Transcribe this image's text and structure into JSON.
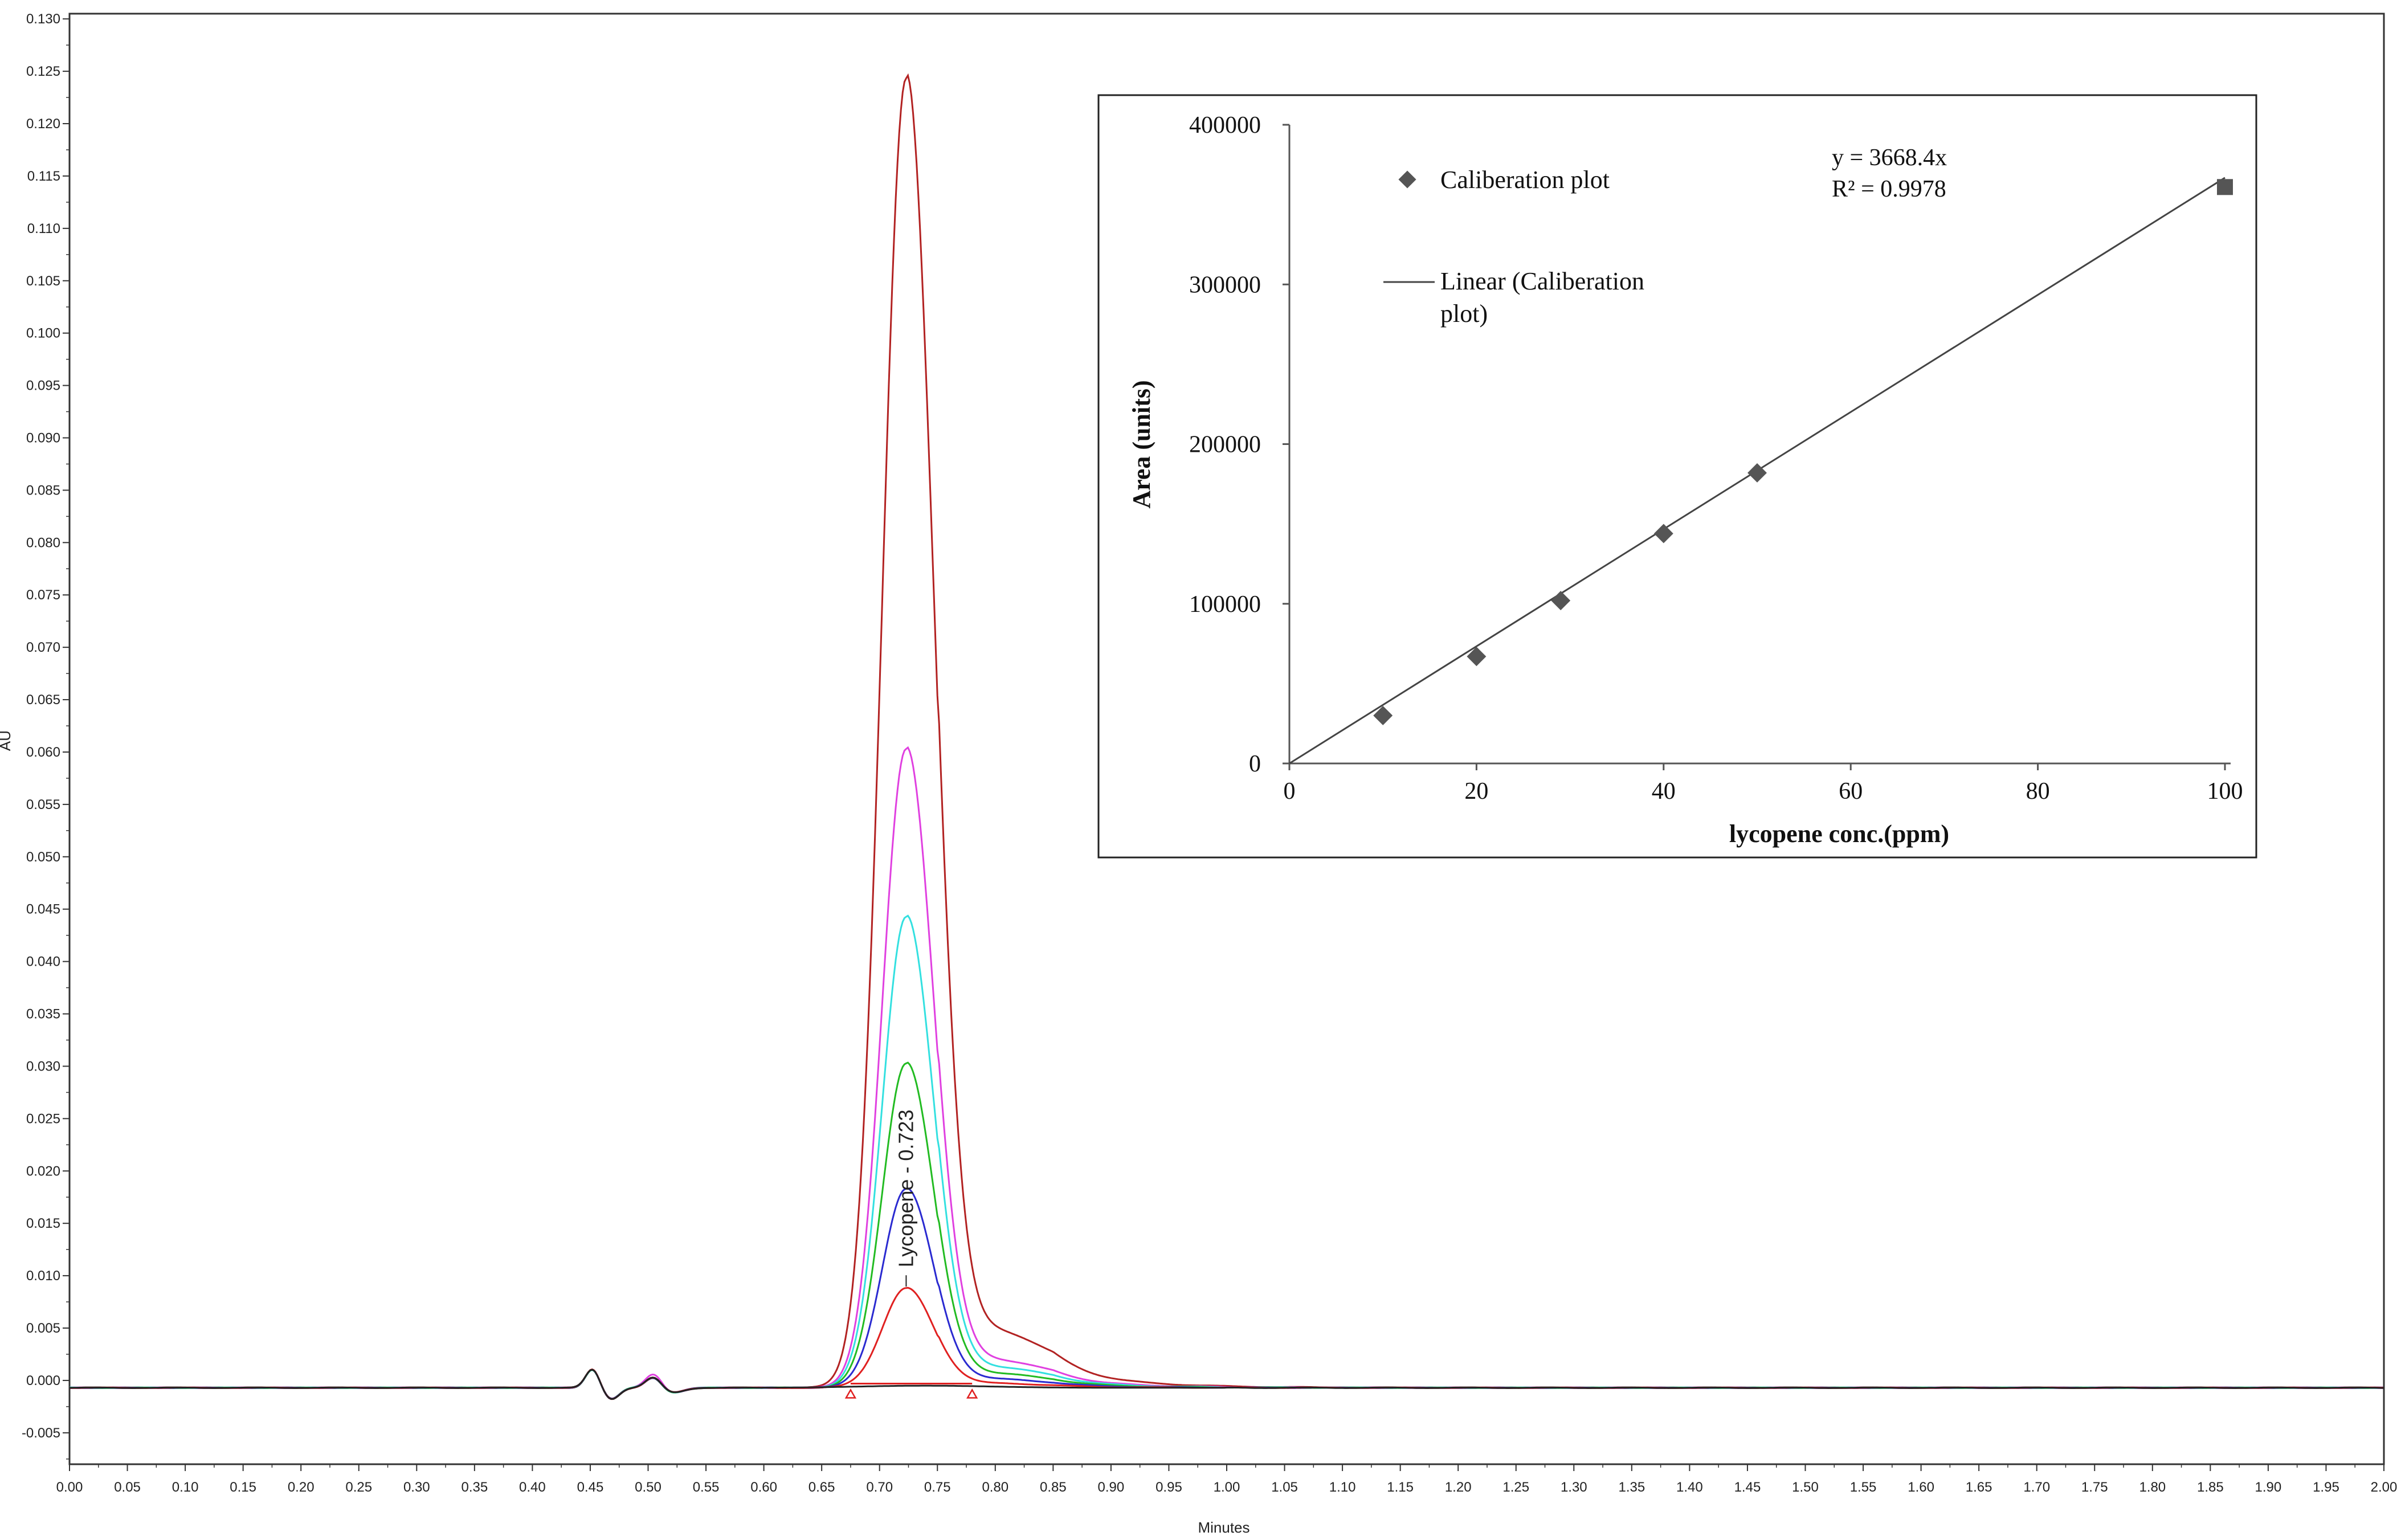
{
  "chart_data": [
    {
      "type": "line",
      "xlabel": "Minutes",
      "ylabel": "AU",
      "xlim": [
        0.0,
        2.0
      ],
      "ylim": [
        -0.008,
        0.1305
      ],
      "x_ticks": [
        "0.00",
        "0.05",
        "0.10",
        "0.15",
        "0.20",
        "0.25",
        "0.30",
        "0.35",
        "0.40",
        "0.45",
        "0.50",
        "0.55",
        "0.60",
        "0.65",
        "0.70",
        "0.75",
        "0.80",
        "0.85",
        "0.90",
        "0.95",
        "1.00",
        "1.05",
        "1.10",
        "1.15",
        "1.20",
        "1.25",
        "1.30",
        "1.35",
        "1.40",
        "1.45",
        "1.50",
        "1.55",
        "1.60",
        "1.65",
        "1.70",
        "1.75",
        "1.80",
        "1.85",
        "1.90",
        "1.95",
        "2.00"
      ],
      "y_ticks": [
        "-0.005",
        "0.000",
        "0.005",
        "0.010",
        "0.015",
        "0.020",
        "0.025",
        "0.030",
        "0.035",
        "0.040",
        "0.045",
        "0.050",
        "0.055",
        "0.060",
        "0.065",
        "0.070",
        "0.075",
        "0.080",
        "0.085",
        "0.090",
        "0.095",
        "0.100",
        "0.105",
        "0.110",
        "0.115",
        "0.120",
        "0.125",
        "0.130"
      ],
      "peak_label": "Lycopene - 0.723",
      "peak_retention_time": 0.723,
      "series": [
        {
          "color": "#b22222",
          "peak_height": 0.125
        },
        {
          "color": "#e040e0",
          "peak_height": 0.061
        },
        {
          "color": "#33e0e0",
          "peak_height": 0.045
        },
        {
          "color": "#22bb22",
          "peak_height": 0.031
        },
        {
          "color": "#2a2ad0",
          "peak_height": 0.019
        },
        {
          "color": "#e02020",
          "peak_height": 0.0095
        }
      ],
      "baseline_markers": [
        0.675,
        0.78
      ]
    },
    {
      "type": "scatter",
      "xlabel": "lycopene conc.(ppm)",
      "ylabel": "Area (units)",
      "xlim": [
        0,
        100
      ],
      "ylim": [
        0,
        400000
      ],
      "x_ticks": [
        "0",
        "20",
        "40",
        "60",
        "80",
        "100"
      ],
      "y_ticks": [
        "0",
        "100000",
        "200000",
        "300000",
        "400000"
      ],
      "points": [
        {
          "x": 10,
          "y": 30000
        },
        {
          "x": 20,
          "y": 67000
        },
        {
          "x": 29,
          "y": 102000
        },
        {
          "x": 40,
          "y": 144000
        },
        {
          "x": 50,
          "y": 182000
        },
        {
          "x": 100,
          "y": 361000
        }
      ],
      "trendline": {
        "slope": 3668.4,
        "intercept": 0
      },
      "equation": "y = 3668.4x",
      "r_squared": "R² = 0.9978",
      "legend": [
        "Caliberation plot",
        "Linear (Caliberation",
        "plot)"
      ],
      "legend_position": "top-left"
    }
  ]
}
